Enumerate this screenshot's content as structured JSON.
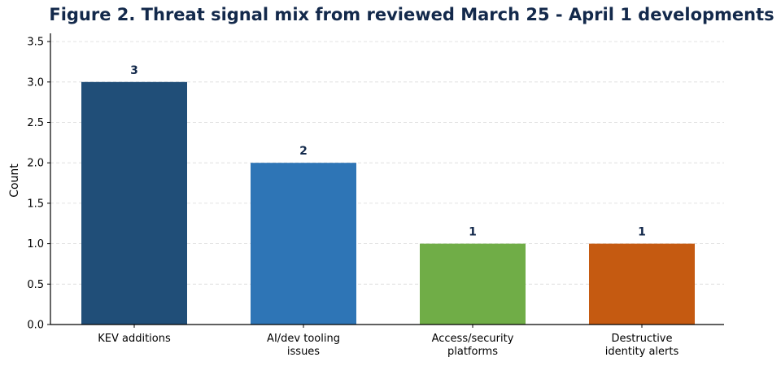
{
  "chart_data": {
    "type": "bar",
    "title": "Figure 2. Threat signal mix from reviewed March 25 - April 1 developments",
    "xlabel": "",
    "ylabel": "Count",
    "ylim": [
      0,
      3.6
    ],
    "yticks": [
      "0.0",
      "0.5",
      "1.0",
      "1.5",
      "2.0",
      "2.5",
      "3.0",
      "3.5"
    ],
    "grid": true,
    "categories": [
      [
        "KEV additions"
      ],
      [
        "AI/dev tooling",
        "issues"
      ],
      [
        "Access/security",
        "platforms"
      ],
      [
        "Destructive",
        "identity alerts"
      ]
    ],
    "values": [
      3,
      2,
      1,
      1
    ],
    "value_labels": [
      "3",
      "2",
      "1",
      "1"
    ],
    "colors": [
      "#204e78",
      "#2e75b6",
      "#70ad47",
      "#c55a11"
    ]
  }
}
